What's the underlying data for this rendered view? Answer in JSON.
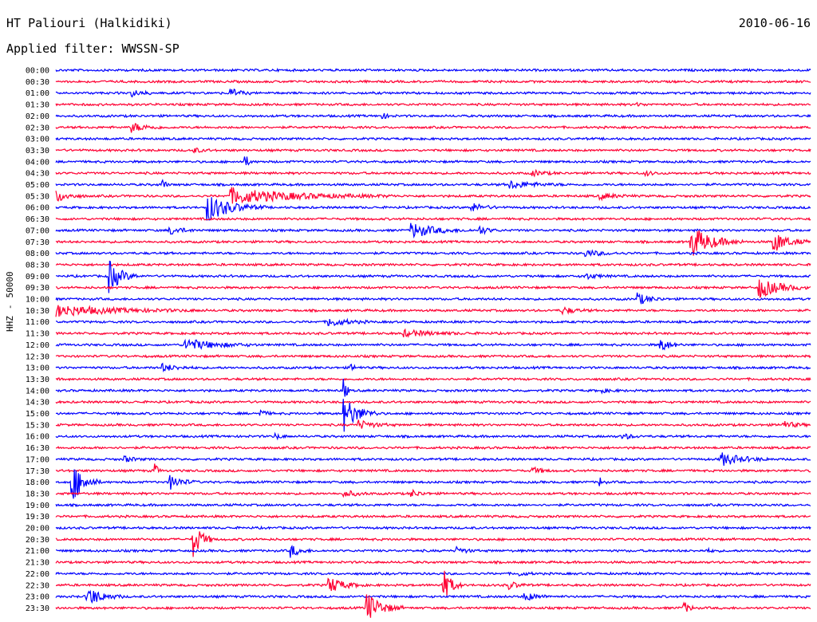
{
  "header": {
    "station": "HT Paliouri (Halkidiki)",
    "date": "2010-06-16",
    "filter": "Applied filter: WWSSN-SP"
  },
  "chart_data": {
    "type": "line",
    "ylabel_channel": "HHZ",
    "ylabel_sep": "-",
    "ylabel_scale": "50000",
    "series_colors": [
      "#0000ff",
      "#ff0033"
    ],
    "rows": [
      {
        "time": "00:00",
        "color": "#0000ff",
        "events": []
      },
      {
        "time": "00:30",
        "color": "#ff0033",
        "events": []
      },
      {
        "time": "01:00",
        "color": "#0000ff",
        "events": [
          {
            "x": 0.1,
            "amp": 4,
            "dur": 0.04
          },
          {
            "x": 0.23,
            "amp": 7,
            "dur": 0.03
          }
        ]
      },
      {
        "time": "01:30",
        "color": "#ff0033",
        "events": [
          {
            "x": 0.77,
            "amp": 2,
            "dur": 0.02
          }
        ]
      },
      {
        "time": "02:00",
        "color": "#0000ff",
        "events": [
          {
            "x": 0.43,
            "amp": 5,
            "dur": 0.02
          }
        ]
      },
      {
        "time": "02:30",
        "color": "#ff0033",
        "events": [
          {
            "x": 0.1,
            "amp": 6,
            "dur": 0.05
          }
        ]
      },
      {
        "time": "03:00",
        "color": "#0000ff",
        "events": []
      },
      {
        "time": "03:30",
        "color": "#ff0033",
        "events": [
          {
            "x": 0.18,
            "amp": 4,
            "dur": 0.03
          }
        ]
      },
      {
        "time": "04:00",
        "color": "#0000ff",
        "events": [
          {
            "x": 0.25,
            "amp": 14,
            "dur": 0.01
          }
        ]
      },
      {
        "time": "04:30",
        "color": "#ff0033",
        "events": [
          {
            "x": 0.63,
            "amp": 4,
            "dur": 0.04
          },
          {
            "x": 0.78,
            "amp": 3,
            "dur": 0.03
          }
        ]
      },
      {
        "time": "05:00",
        "color": "#0000ff",
        "events": [
          {
            "x": 0.14,
            "amp": 12,
            "dur": 0.01
          },
          {
            "x": 0.6,
            "amp": 5,
            "dur": 0.08
          }
        ]
      },
      {
        "time": "05:30",
        "color": "#ff0033",
        "events": [
          {
            "x": 0.0,
            "amp": 8,
            "dur": 0.04
          },
          {
            "x": 0.23,
            "amp": 10,
            "dur": 0.22
          },
          {
            "x": 0.72,
            "amp": 4,
            "dur": 0.05
          }
        ]
      },
      {
        "time": "06:00",
        "color": "#0000ff",
        "events": [
          {
            "x": 0.2,
            "amp": 18,
            "dur": 0.08
          },
          {
            "x": 0.55,
            "amp": 6,
            "dur": 0.04
          }
        ]
      },
      {
        "time": "06:30",
        "color": "#ff0033",
        "events": []
      },
      {
        "time": "07:00",
        "color": "#0000ff",
        "events": [
          {
            "x": 0.15,
            "amp": 6,
            "dur": 0.04
          },
          {
            "x": 0.47,
            "amp": 10,
            "dur": 0.08
          },
          {
            "x": 0.56,
            "amp": 6,
            "dur": 0.03
          }
        ]
      },
      {
        "time": "07:30",
        "color": "#ff0033",
        "events": [
          {
            "x": 0.84,
            "amp": 22,
            "dur": 0.07
          },
          {
            "x": 0.95,
            "amp": 14,
            "dur": 0.05
          }
        ]
      },
      {
        "time": "08:00",
        "color": "#0000ff",
        "events": [
          {
            "x": 0.7,
            "amp": 4,
            "dur": 0.06
          }
        ]
      },
      {
        "time": "08:30",
        "color": "#ff0033",
        "events": []
      },
      {
        "time": "09:00",
        "color": "#0000ff",
        "events": [
          {
            "x": 0.07,
            "amp": 22,
            "dur": 0.04
          },
          {
            "x": 0.7,
            "amp": 4,
            "dur": 0.04
          }
        ]
      },
      {
        "time": "09:30",
        "color": "#ff0033",
        "events": [
          {
            "x": 0.93,
            "amp": 14,
            "dur": 0.07
          }
        ]
      },
      {
        "time": "10:00",
        "color": "#0000ff",
        "events": [
          {
            "x": 0.77,
            "amp": 8,
            "dur": 0.04
          }
        ]
      },
      {
        "time": "10:30",
        "color": "#ff0033",
        "events": [
          {
            "x": 0.0,
            "amp": 7,
            "dur": 0.2
          },
          {
            "x": 0.67,
            "amp": 5,
            "dur": 0.04
          }
        ]
      },
      {
        "time": "11:00",
        "color": "#0000ff",
        "events": [
          {
            "x": 0.36,
            "amp": 6,
            "dur": 0.06
          }
        ]
      },
      {
        "time": "11:30",
        "color": "#ff0033",
        "events": [
          {
            "x": 0.46,
            "amp": 4,
            "dur": 0.1
          }
        ]
      },
      {
        "time": "12:00",
        "color": "#0000ff",
        "events": [
          {
            "x": 0.17,
            "amp": 8,
            "dur": 0.1
          },
          {
            "x": 0.8,
            "amp": 10,
            "dur": 0.03
          }
        ]
      },
      {
        "time": "12:30",
        "color": "#ff0033",
        "events": []
      },
      {
        "time": "13:00",
        "color": "#0000ff",
        "events": [
          {
            "x": 0.14,
            "amp": 5,
            "dur": 0.05
          },
          {
            "x": 0.39,
            "amp": 4,
            "dur": 0.02
          }
        ]
      },
      {
        "time": "13:30",
        "color": "#ff0033",
        "events": []
      },
      {
        "time": "14:00",
        "color": "#0000ff",
        "events": [
          {
            "x": 0.38,
            "amp": 26,
            "dur": 0.01
          },
          {
            "x": 0.72,
            "amp": 3,
            "dur": 0.03
          }
        ]
      },
      {
        "time": "14:30",
        "color": "#ff0033",
        "events": []
      },
      {
        "time": "15:00",
        "color": "#0000ff",
        "events": [
          {
            "x": 0.38,
            "amp": 24,
            "dur": 0.05
          },
          {
            "x": 0.27,
            "amp": 5,
            "dur": 0.02
          }
        ]
      },
      {
        "time": "15:30",
        "color": "#ff0033",
        "events": [
          {
            "x": 0.4,
            "amp": 6,
            "dur": 0.05
          },
          {
            "x": 0.96,
            "amp": 6,
            "dur": 0.04
          }
        ]
      },
      {
        "time": "16:00",
        "color": "#0000ff",
        "events": [
          {
            "x": 0.29,
            "amp": 4,
            "dur": 0.02
          },
          {
            "x": 0.75,
            "amp": 4,
            "dur": 0.03
          }
        ]
      },
      {
        "time": "16:30",
        "color": "#ff0033",
        "events": []
      },
      {
        "time": "17:00",
        "color": "#0000ff",
        "events": [
          {
            "x": 0.09,
            "amp": 4,
            "dur": 0.03
          },
          {
            "x": 0.88,
            "amp": 9,
            "dur": 0.07
          }
        ]
      },
      {
        "time": "17:30",
        "color": "#ff0033",
        "events": [
          {
            "x": 0.13,
            "amp": 14,
            "dur": 0.01
          },
          {
            "x": 0.63,
            "amp": 5,
            "dur": 0.03
          }
        ]
      },
      {
        "time": "18:00",
        "color": "#0000ff",
        "events": [
          {
            "x": 0.02,
            "amp": 30,
            "dur": 0.04
          },
          {
            "x": 0.15,
            "amp": 10,
            "dur": 0.04
          },
          {
            "x": 0.72,
            "amp": 8,
            "dur": 0.01
          }
        ]
      },
      {
        "time": "18:30",
        "color": "#ff0033",
        "events": [
          {
            "x": 0.38,
            "amp": 5,
            "dur": 0.04
          },
          {
            "x": 0.47,
            "amp": 5,
            "dur": 0.03
          }
        ]
      },
      {
        "time": "19:00",
        "color": "#0000ff",
        "events": []
      },
      {
        "time": "19:30",
        "color": "#ff0033",
        "events": []
      },
      {
        "time": "20:00",
        "color": "#0000ff",
        "events": []
      },
      {
        "time": "20:30",
        "color": "#ff0033",
        "events": [
          {
            "x": 0.18,
            "amp": 28,
            "dur": 0.03
          }
        ]
      },
      {
        "time": "21:00",
        "color": "#0000ff",
        "events": [
          {
            "x": 0.31,
            "amp": 9,
            "dur": 0.03
          },
          {
            "x": 0.53,
            "amp": 5,
            "dur": 0.03
          },
          {
            "x": 0.86,
            "amp": 3,
            "dur": 0.02
          }
        ]
      },
      {
        "time": "21:30",
        "color": "#ff0033",
        "events": []
      },
      {
        "time": "22:00",
        "color": "#0000ff",
        "events": [
          {
            "x": 0.61,
            "amp": 3,
            "dur": 0.03
          }
        ]
      },
      {
        "time": "22:30",
        "color": "#ff0033",
        "events": [
          {
            "x": 0.36,
            "amp": 12,
            "dur": 0.05
          },
          {
            "x": 0.51,
            "amp": 28,
            "dur": 0.03
          },
          {
            "x": 0.6,
            "amp": 5,
            "dur": 0.03
          }
        ]
      },
      {
        "time": "23:00",
        "color": "#0000ff",
        "events": [
          {
            "x": 0.04,
            "amp": 14,
            "dur": 0.05
          },
          {
            "x": 0.62,
            "amp": 6,
            "dur": 0.04
          }
        ]
      },
      {
        "time": "23:30",
        "color": "#ff0033",
        "events": [
          {
            "x": 0.41,
            "amp": 22,
            "dur": 0.05
          },
          {
            "x": 0.83,
            "amp": 10,
            "dur": 0.02
          }
        ]
      }
    ]
  }
}
